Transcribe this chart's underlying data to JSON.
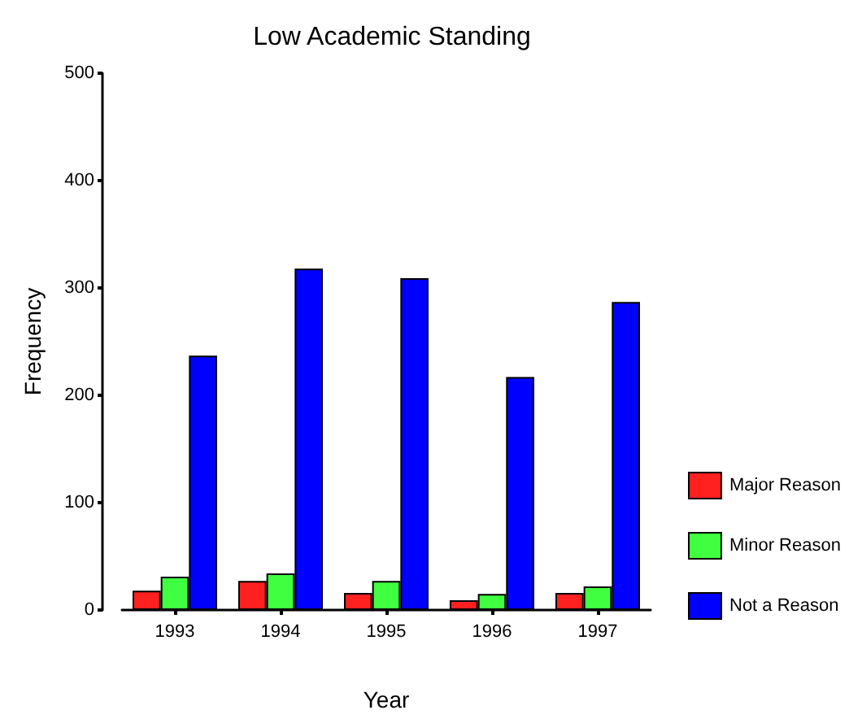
{
  "chart_data": {
    "type": "bar",
    "title": "Low Academic Standing",
    "xlabel": "Year",
    "ylabel": "Frequency",
    "categories": [
      "1993",
      "1994",
      "1995",
      "1996",
      "1997"
    ],
    "series": [
      {
        "name": "Major Reason",
        "color": "#ff2020",
        "values": [
          18,
          27,
          16,
          9,
          16
        ]
      },
      {
        "name": "Minor Reason",
        "color": "#40ff40",
        "values": [
          31,
          34,
          27,
          15,
          22
        ]
      },
      {
        "name": "Not a Reason",
        "color": "#0000ff",
        "values": [
          237,
          318,
          309,
          217,
          287
        ]
      }
    ],
    "ylim": [
      0,
      500
    ],
    "yticks": [
      0,
      100,
      200,
      300,
      400,
      500
    ],
    "grid": false,
    "legend": "right"
  }
}
